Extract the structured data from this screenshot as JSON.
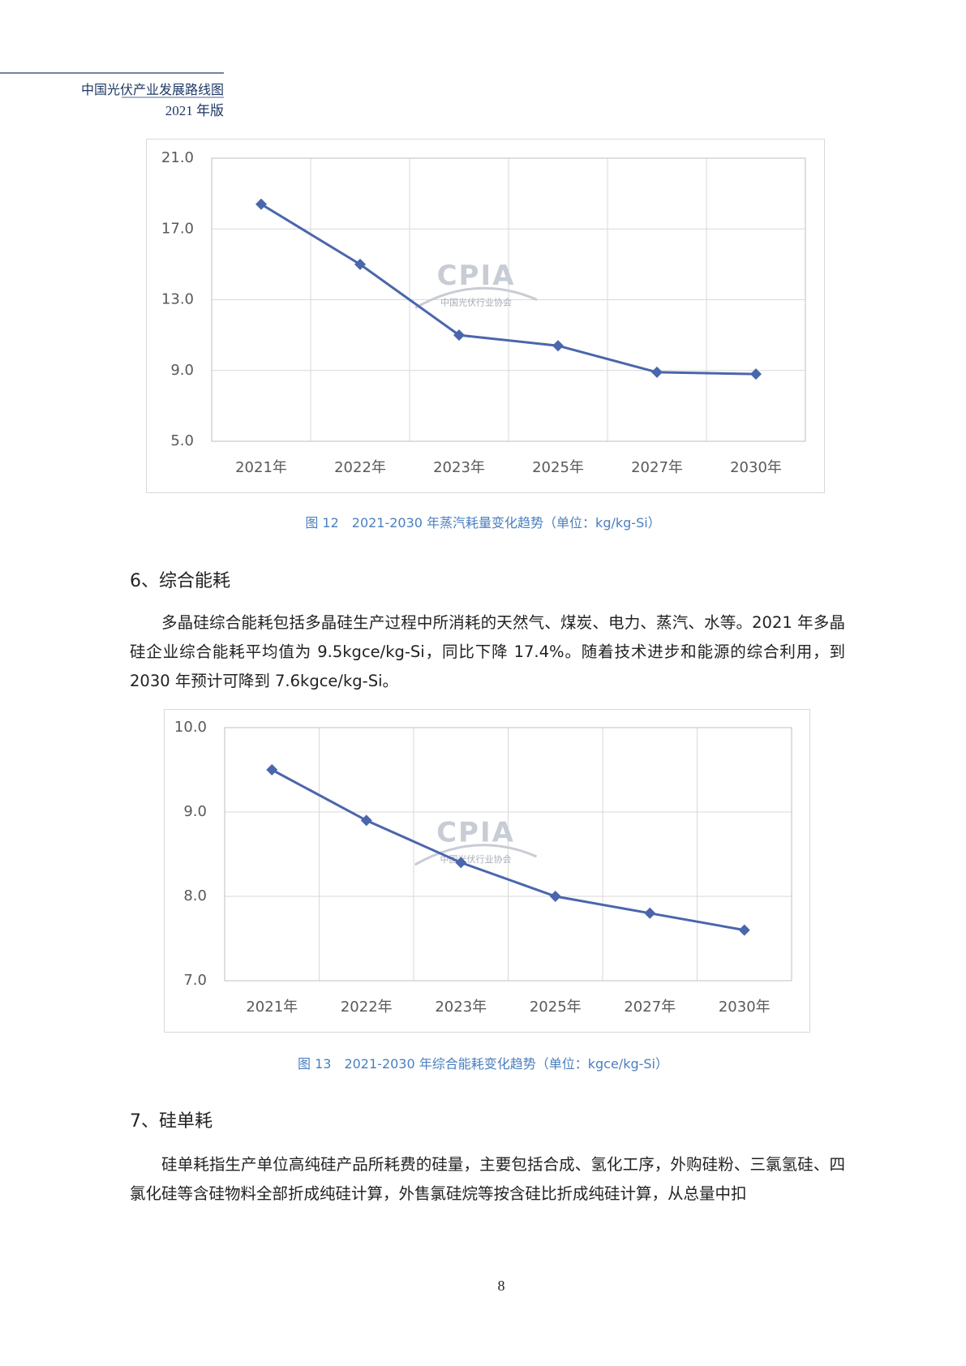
{
  "header": {
    "title": "中国光伏产业发展路线图",
    "edition": "2021 年版"
  },
  "watermark": {
    "logo": "CPIA",
    "name": "中国光伏行业协会"
  },
  "chart_data": [
    {
      "type": "line",
      "caption": "图 12　2021-2030 年蒸汽耗量变化趋势（单位：kg/kg-Si）",
      "categories": [
        "2021年",
        "2022年",
        "2023年",
        "2025年",
        "2027年",
        "2030年"
      ],
      "values": [
        18.4,
        15.0,
        11.0,
        10.4,
        8.9,
        8.8
      ],
      "color": "#4a66ac",
      "ylim": [
        5,
        21
      ],
      "yticks": [
        {
          "value": 5,
          "label": "5.0"
        },
        {
          "value": 9,
          "label": "9.0"
        },
        {
          "value": 13,
          "label": "13.0"
        },
        {
          "value": 17,
          "label": "17.0"
        },
        {
          "value": 21,
          "label": "21.0"
        }
      ],
      "grid": true
    },
    {
      "type": "line",
      "caption": "图 13　2021-2030 年综合能耗变化趋势（单位：kgce/kg-Si）",
      "categories": [
        "2021年",
        "2022年",
        "2023年",
        "2025年",
        "2027年",
        "2030年"
      ],
      "values": [
        9.5,
        8.9,
        8.4,
        8.0,
        7.8,
        7.6
      ],
      "color": "#4a66ac",
      "ylim": [
        7,
        10
      ],
      "yticks": [
        {
          "value": 7,
          "label": "7.0"
        },
        {
          "value": 8,
          "label": "8.0"
        },
        {
          "value": 9,
          "label": "9.0"
        },
        {
          "value": 10,
          "label": "10.0"
        }
      ],
      "grid": true
    }
  ],
  "sections": [
    {
      "heading": "6、综合能耗",
      "paragraph": "多晶硅综合能耗包括多晶硅生产过程中所消耗的天然气、煤炭、电力、蒸汽、水等。2021 年多晶硅企业综合能耗平均值为 9.5kgce/kg-Si，同比下降 17.4%。随着技术进步和能源的综合利用，到 2030 年预计可降到 7.6kgce/kg-Si。"
    },
    {
      "heading": "7、硅单耗",
      "paragraph": "硅单耗指生产单位高纯硅产品所耗费的硅量，主要包括合成、氢化工序，外购硅粉、三氯氢硅、四氯化硅等含硅物料全部折成纯硅计算，外售氯硅烷等按含硅比折成纯硅计算，从总量中扣"
    }
  ],
  "page_number": "8"
}
